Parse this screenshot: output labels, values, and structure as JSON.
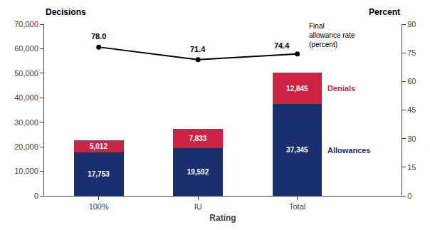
{
  "chart_data": {
    "type": "bar",
    "stacked": true,
    "data_labels": true,
    "grid": false,
    "xlabel": "Rating",
    "ylabel": "Decisions",
    "y2label": "Percent",
    "categories": [
      "100%",
      "IU",
      "Total"
    ],
    "series": [
      {
        "name": "Allowances",
        "color": "#1a2f6e",
        "values": [
          17753,
          19592,
          37345
        ],
        "value_labels": [
          "17,753",
          "19,592",
          "37,345"
        ]
      },
      {
        "name": "Denials",
        "color": "#cc2244",
        "values": [
          5012,
          7833,
          12845
        ],
        "value_labels": [
          "5,012",
          "7,833",
          "12,845"
        ]
      },
      {
        "name": "Final\nallowance rate\n(percent)",
        "type": "line",
        "axis": "y2",
        "color": "#000000",
        "marker": "circle",
        "values": [
          78.0,
          71.4,
          74.4
        ],
        "value_labels": [
          "78.0",
          "71.4",
          "74.4"
        ]
      }
    ],
    "ylim": [
      0,
      70000
    ],
    "yticks": [
      0,
      {
        "value": 10000,
        "label": "10,000"
      },
      {
        "value": 20000,
        "label": "20,000"
      },
      {
        "value": 30000,
        "label": "30,000"
      },
      {
        "value": 40000,
        "label": "40,000"
      },
      {
        "value": 50000,
        "label": "50,000"
      },
      {
        "value": 60000,
        "label": "60,000"
      },
      {
        "value": 70000,
        "label": "70,000"
      }
    ],
    "y2lim": [
      0,
      90
    ],
    "y2ticks": [
      0,
      15,
      30,
      45,
      60,
      75,
      90
    ]
  }
}
